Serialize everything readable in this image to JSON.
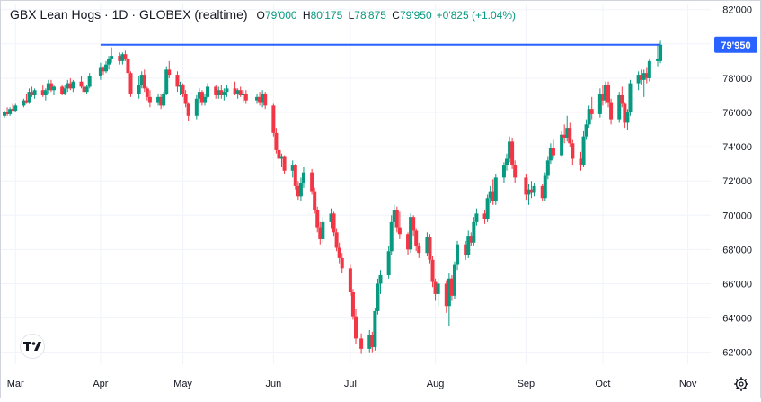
{
  "legend": {
    "symbol": "GBX Lean Hogs · 1D · GLOBEX (realtime)",
    "o_label": "O",
    "o_value": "79'000",
    "h_label": "H",
    "h_value": "80'175",
    "l_label": "L",
    "l_value": "78'875",
    "c_label": "C",
    "c_value": "79'950",
    "change": "+0'825 (+1.04%)"
  },
  "colors": {
    "up": "#089981",
    "down": "#f23645",
    "line": "#2962ff",
    "axis_text": "#131722",
    "grid": "#f0f3fa"
  },
  "icons": {
    "logo": "tradingview-logo-icon",
    "settings": "gear-icon"
  },
  "chart_data": {
    "type": "candlestick",
    "y_axis_ticks": [
      "62'000",
      "64'000",
      "66'000",
      "68'000",
      "70'000",
      "72'000",
      "74'000",
      "76'000",
      "78'000",
      "80'000",
      "82'000"
    ],
    "y_tick_values": [
      62,
      64,
      66,
      68,
      70,
      72,
      74,
      76,
      78,
      80,
      82
    ],
    "ylim": [
      61.3,
      82.3
    ],
    "x_axis_labels": [
      "Mar",
      "Apr",
      "May",
      "Jun",
      "Jul",
      "Aug",
      "Sep",
      "Oct",
      "Nov"
    ],
    "x_tick_dates": [
      "2024-03-01",
      "2024-04-01",
      "2024-05-01",
      "2024-06-03",
      "2024-07-01",
      "2024-08-01",
      "2024-09-03",
      "2024-10-01",
      "2024-11-01"
    ],
    "xlim": [
      "2024-02-26",
      "2024-11-08"
    ],
    "last_price": 79.95,
    "last_price_label": "79'950",
    "horizontal_line": 79.95,
    "horizontal_line_range": [
      "2024-04-01",
      "2024-10-22"
    ],
    "candles": [
      [
        "2024-02-26",
        75.8,
        76.1,
        75.7,
        76.0
      ],
      [
        "2024-02-27",
        76.0,
        76.3,
        75.8,
        75.9
      ],
      [
        "2024-02-28",
        75.9,
        76.3,
        75.8,
        76.2
      ],
      [
        "2024-02-29",
        76.2,
        76.5,
        76.1,
        76.1
      ],
      [
        "2024-03-01",
        76.1,
        76.5,
        76.0,
        76.4
      ],
      [
        "2024-03-04",
        76.4,
        76.8,
        76.3,
        76.7
      ],
      [
        "2024-03-05",
        76.7,
        77.1,
        76.5,
        76.6
      ],
      [
        "2024-03-06",
        76.6,
        77.4,
        76.5,
        77.2
      ],
      [
        "2024-03-07",
        77.2,
        77.5,
        76.9,
        77.0
      ],
      [
        "2024-03-08",
        77.0,
        77.4,
        76.8,
        77.3
      ],
      [
        "2024-03-11",
        77.3,
        77.6,
        76.9,
        77.0
      ],
      [
        "2024-03-12",
        77.0,
        77.4,
        76.7,
        77.3
      ],
      [
        "2024-03-13",
        77.3,
        77.9,
        77.1,
        77.7
      ],
      [
        "2024-03-14",
        77.7,
        77.9,
        77.2,
        77.3
      ],
      [
        "2024-03-15",
        77.3,
        77.6,
        77.0,
        77.5
      ],
      [
        "2024-03-18",
        77.5,
        77.6,
        77.0,
        77.1
      ],
      [
        "2024-03-19",
        77.1,
        77.6,
        77.0,
        77.4
      ],
      [
        "2024-03-20",
        77.4,
        77.9,
        77.2,
        77.7
      ],
      [
        "2024-03-21",
        77.7,
        78.0,
        77.3,
        77.4
      ],
      [
        "2024-03-22",
        77.4,
        77.9,
        77.2,
        77.8
      ],
      [
        "2024-03-25",
        77.8,
        78.1,
        77.4,
        77.5
      ],
      [
        "2024-03-26",
        77.5,
        77.6,
        77.0,
        77.2
      ],
      [
        "2024-03-27",
        77.2,
        77.6,
        77.1,
        77.5
      ],
      [
        "2024-03-28",
        77.5,
        78.3,
        77.4,
        78.1
      ],
      [
        "2024-04-01",
        78.1,
        78.9,
        77.9,
        78.6
      ],
      [
        "2024-04-02",
        78.6,
        78.7,
        78.2,
        78.4
      ],
      [
        "2024-04-03",
        78.4,
        79.0,
        78.3,
        78.8
      ],
      [
        "2024-04-04",
        78.8,
        79.3,
        78.5,
        79.1
      ],
      [
        "2024-04-05",
        79.1,
        79.8,
        78.9,
        79.3
      ],
      [
        "2024-04-08",
        79.3,
        79.5,
        78.8,
        79.0
      ],
      [
        "2024-04-09",
        79.0,
        79.5,
        78.8,
        79.4
      ],
      [
        "2024-04-10",
        79.4,
        79.6,
        79.0,
        79.1
      ],
      [
        "2024-04-11",
        79.1,
        79.2,
        78.0,
        78.3
      ],
      [
        "2024-04-12",
        78.3,
        78.4,
        76.9,
        77.1
      ],
      [
        "2024-04-15",
        77.1,
        78.1,
        76.8,
        77.6
      ],
      [
        "2024-04-16",
        77.6,
        78.4,
        77.4,
        78.2
      ],
      [
        "2024-04-17",
        78.2,
        78.5,
        77.2,
        77.4
      ],
      [
        "2024-04-18",
        77.4,
        77.5,
        76.7,
        76.9
      ],
      [
        "2024-04-19",
        76.9,
        77.3,
        76.3,
        76.6
      ],
      [
        "2024-04-22",
        76.6,
        77.1,
        76.4,
        76.9
      ],
      [
        "2024-04-23",
        76.9,
        77.1,
        76.2,
        76.4
      ],
      [
        "2024-04-24",
        76.4,
        77.2,
        76.3,
        77.1
      ],
      [
        "2024-04-25",
        77.1,
        78.7,
        77.0,
        78.5
      ],
      [
        "2024-04-26",
        78.5,
        79.0,
        78.0,
        78.2
      ],
      [
        "2024-04-29",
        78.2,
        78.4,
        77.2,
        77.5
      ],
      [
        "2024-04-30",
        77.5,
        77.8,
        77.0,
        77.6
      ],
      [
        "2024-05-01",
        77.6,
        77.7,
        76.9,
        77.1
      ],
      [
        "2024-05-02",
        77.1,
        77.3,
        76.3,
        76.5
      ],
      [
        "2024-05-03",
        76.5,
        76.6,
        75.5,
        75.8
      ],
      [
        "2024-05-06",
        75.8,
        77.0,
        75.6,
        76.8
      ],
      [
        "2024-05-07",
        76.8,
        77.4,
        76.5,
        77.2
      ],
      [
        "2024-05-08",
        77.2,
        77.3,
        76.4,
        76.6
      ],
      [
        "2024-05-09",
        76.6,
        77.1,
        76.4,
        76.9
      ],
      [
        "2024-05-10",
        76.9,
        77.7,
        76.8,
        77.5
      ],
      [
        "2024-05-13",
        77.5,
        77.6,
        76.8,
        77.0
      ],
      [
        "2024-05-14",
        77.0,
        77.5,
        76.8,
        77.3
      ],
      [
        "2024-05-15",
        77.3,
        77.6,
        76.8,
        77.0
      ],
      [
        "2024-05-16",
        77.0,
        77.4,
        76.7,
        77.2
      ],
      [
        "2024-05-17",
        77.2,
        77.6,
        76.9,
        77.4
      ],
      [
        "2024-05-20",
        77.4,
        77.8,
        77.0,
        77.1
      ],
      [
        "2024-05-21",
        77.1,
        77.4,
        76.8,
        77.3
      ],
      [
        "2024-05-22",
        77.3,
        77.5,
        76.9,
        77.0
      ],
      [
        "2024-05-23",
        77.0,
        77.3,
        76.6,
        77.1
      ],
      [
        "2024-05-24",
        77.1,
        77.3,
        76.5,
        76.7
      ],
      [
        "2024-05-28",
        76.7,
        77.1,
        76.5,
        76.9
      ],
      [
        "2024-05-29",
        76.9,
        77.2,
        76.4,
        76.6
      ],
      [
        "2024-05-30",
        76.6,
        77.3,
        76.3,
        77.1
      ],
      [
        "2024-05-31",
        77.1,
        77.2,
        76.2,
        76.4
      ],
      [
        "2024-06-03",
        76.4,
        76.5,
        74.6,
        74.8
      ],
      [
        "2024-06-04",
        74.8,
        75.1,
        73.6,
        73.8
      ],
      [
        "2024-06-05",
        73.8,
        74.2,
        73.0,
        73.3
      ],
      [
        "2024-06-06",
        73.3,
        73.6,
        72.8,
        73.4
      ],
      [
        "2024-06-07",
        73.4,
        73.5,
        72.4,
        72.6
      ],
      [
        "2024-06-10",
        72.6,
        73.2,
        72.2,
        72.9
      ],
      [
        "2024-06-11",
        72.9,
        73.0,
        71.5,
        71.7
      ],
      [
        "2024-06-12",
        71.7,
        72.0,
        70.9,
        71.1
      ],
      [
        "2024-06-13",
        71.1,
        72.2,
        70.8,
        71.9
      ],
      [
        "2024-06-14",
        71.9,
        72.8,
        71.6,
        72.5
      ],
      [
        "2024-06-17",
        72.5,
        72.7,
        71.2,
        71.4
      ],
      [
        "2024-06-18",
        71.4,
        71.6,
        70.1,
        70.3
      ],
      [
        "2024-06-19",
        70.3,
        70.5,
        69.0,
        69.3
      ],
      [
        "2024-06-20",
        69.3,
        69.6,
        68.3,
        68.6
      ],
      [
        "2024-06-21",
        68.6,
        69.9,
        68.4,
        69.6
      ],
      [
        "2024-06-24",
        69.6,
        70.4,
        69.2,
        70.1
      ],
      [
        "2024-06-25",
        70.1,
        70.2,
        68.8,
        69.0
      ],
      [
        "2024-06-26",
        69.0,
        69.2,
        67.9,
        68.1
      ],
      [
        "2024-06-27",
        68.1,
        68.4,
        67.2,
        67.5
      ],
      [
        "2024-06-28",
        67.5,
        67.8,
        66.6,
        66.9
      ],
      [
        "2024-07-01",
        66.9,
        67.1,
        65.3,
        65.5
      ],
      [
        "2024-07-02",
        65.5,
        65.7,
        63.9,
        64.1
      ],
      [
        "2024-07-03",
        64.1,
        64.5,
        62.5,
        62.8
      ],
      [
        "2024-07-05",
        62.8,
        63.1,
        61.9,
        62.2
      ],
      [
        "2024-07-08",
        62.2,
        63.3,
        62.0,
        63.0
      ],
      [
        "2024-07-09",
        63.0,
        63.2,
        62.0,
        62.3
      ],
      [
        "2024-07-10",
        62.3,
        64.6,
        62.1,
        64.4
      ],
      [
        "2024-07-11",
        64.4,
        66.3,
        64.2,
        66.0
      ],
      [
        "2024-07-12",
        66.0,
        66.8,
        65.4,
        66.5
      ],
      [
        "2024-07-15",
        66.5,
        68.2,
        66.3,
        67.9
      ],
      [
        "2024-07-16",
        67.9,
        70.0,
        67.7,
        69.6
      ],
      [
        "2024-07-17",
        69.6,
        70.6,
        69.3,
        70.3
      ],
      [
        "2024-07-18",
        70.3,
        70.5,
        69.0,
        69.3
      ],
      [
        "2024-07-19",
        69.3,
        70.2,
        68.6,
        68.9
      ],
      [
        "2024-07-22",
        68.9,
        69.0,
        67.7,
        68.0
      ],
      [
        "2024-07-23",
        68.0,
        70.1,
        67.8,
        69.9
      ],
      [
        "2024-07-24",
        69.9,
        70.0,
        68.8,
        69.1
      ],
      [
        "2024-07-25",
        69.1,
        69.2,
        67.9,
        68.2
      ],
      [
        "2024-07-26",
        68.2,
        68.4,
        67.5,
        67.8
      ],
      [
        "2024-07-29",
        67.8,
        69.0,
        67.6,
        68.7
      ],
      [
        "2024-07-30",
        68.7,
        68.9,
        67.2,
        67.4
      ],
      [
        "2024-07-31",
        67.4,
        67.6,
        65.8,
        66.1
      ],
      [
        "2024-08-01",
        66.1,
        66.3,
        65.0,
        65.4
      ],
      [
        "2024-08-02",
        65.4,
        66.3,
        64.7,
        66.0
      ],
      [
        "2024-08-05",
        66.0,
        66.2,
        64.3,
        64.7
      ],
      [
        "2024-08-06",
        64.7,
        66.6,
        63.5,
        66.3
      ],
      [
        "2024-08-07",
        66.3,
        66.5,
        65.0,
        65.3
      ],
      [
        "2024-08-08",
        65.3,
        67.3,
        65.1,
        67.1
      ],
      [
        "2024-08-09",
        67.1,
        68.5,
        66.8,
        68.3
      ],
      [
        "2024-08-12",
        68.3,
        68.5,
        67.4,
        67.7
      ],
      [
        "2024-08-13",
        67.7,
        69.1,
        67.5,
        68.8
      ],
      [
        "2024-08-14",
        68.8,
        69.0,
        68.2,
        68.4
      ],
      [
        "2024-08-15",
        68.4,
        69.9,
        68.2,
        69.6
      ],
      [
        "2024-08-16",
        69.6,
        70.4,
        69.4,
        70.1
      ],
      [
        "2024-08-19",
        70.1,
        70.3,
        69.5,
        69.8
      ],
      [
        "2024-08-20",
        69.8,
        71.2,
        69.6,
        71.0
      ],
      [
        "2024-08-21",
        71.0,
        71.7,
        70.7,
        71.4
      ],
      [
        "2024-08-22",
        71.4,
        72.1,
        70.6,
        70.8
      ],
      [
        "2024-08-23",
        70.8,
        72.4,
        70.6,
        72.2
      ],
      [
        "2024-08-26",
        72.2,
        73.1,
        71.9,
        72.9
      ],
      [
        "2024-08-27",
        72.9,
        73.6,
        72.6,
        73.3
      ],
      [
        "2024-08-28",
        73.3,
        74.6,
        73.1,
        74.3
      ],
      [
        "2024-08-29",
        74.3,
        74.5,
        72.7,
        72.9
      ],
      [
        "2024-08-30",
        72.9,
        73.2,
        71.9,
        72.2
      ],
      [
        "2024-09-03",
        72.2,
        72.4,
        70.9,
        71.2
      ],
      [
        "2024-09-04",
        71.2,
        71.8,
        70.6,
        71.5
      ],
      [
        "2024-09-05",
        71.5,
        72.0,
        71.0,
        71.3
      ],
      [
        "2024-09-06",
        71.3,
        71.9,
        71.1,
        71.7
      ],
      [
        "2024-09-09",
        71.7,
        71.8,
        70.8,
        71.0
      ],
      [
        "2024-09-10",
        71.0,
        72.5,
        70.8,
        72.3
      ],
      [
        "2024-09-11",
        72.3,
        73.4,
        72.1,
        73.2
      ],
      [
        "2024-09-12",
        73.2,
        74.2,
        73.0,
        73.9
      ],
      [
        "2024-09-13",
        73.9,
        74.4,
        73.3,
        73.5
      ],
      [
        "2024-09-16",
        73.5,
        74.9,
        73.4,
        74.7
      ],
      [
        "2024-09-17",
        74.7,
        75.3,
        74.2,
        74.5
      ],
      [
        "2024-09-18",
        74.5,
        75.8,
        74.3,
        75.1
      ],
      [
        "2024-09-19",
        75.1,
        75.4,
        74.0,
        74.2
      ],
      [
        "2024-09-20",
        74.2,
        74.4,
        72.9,
        73.3
      ],
      [
        "2024-09-23",
        73.3,
        73.7,
        72.6,
        72.9
      ],
      [
        "2024-09-24",
        72.9,
        74.9,
        72.8,
        74.6
      ],
      [
        "2024-09-25",
        74.6,
        75.6,
        74.4,
        75.3
      ],
      [
        "2024-09-26",
        75.3,
        76.4,
        75.1,
        76.2
      ],
      [
        "2024-09-27",
        76.2,
        76.9,
        75.6,
        75.9
      ],
      [
        "2024-09-30",
        75.9,
        77.4,
        75.7,
        77.1
      ],
      [
        "2024-10-01",
        77.1,
        77.6,
        76.4,
        76.7
      ],
      [
        "2024-10-02",
        76.7,
        77.8,
        76.5,
        77.6
      ],
      [
        "2024-10-03",
        77.6,
        77.8,
        76.3,
        76.6
      ],
      [
        "2024-10-04",
        76.6,
        76.8,
        75.3,
        75.6
      ],
      [
        "2024-10-07",
        75.6,
        77.2,
        75.4,
        77.0
      ],
      [
        "2024-10-08",
        77.0,
        77.5,
        76.3,
        76.5
      ],
      [
        "2024-10-09",
        76.5,
        76.6,
        75.1,
        75.4
      ],
      [
        "2024-10-10",
        75.4,
        76.2,
        75.0,
        76.0
      ],
      [
        "2024-10-11",
        76.0,
        77.9,
        75.8,
        77.7
      ],
      [
        "2024-10-14",
        77.7,
        78.4,
        77.3,
        78.2
      ],
      [
        "2024-10-15",
        78.2,
        78.5,
        77.6,
        77.9
      ],
      [
        "2024-10-16",
        77.9,
        78.5,
        76.9,
        78.3
      ],
      [
        "2024-10-17",
        78.3,
        78.6,
        77.7,
        78.0
      ],
      [
        "2024-10-18",
        78.0,
        79.1,
        77.8,
        79.0
      ],
      [
        "2024-10-21",
        79.0,
        80.0,
        78.7,
        79.1
      ],
      [
        "2024-10-22",
        79.0,
        80.175,
        78.875,
        79.95
      ]
    ]
  }
}
